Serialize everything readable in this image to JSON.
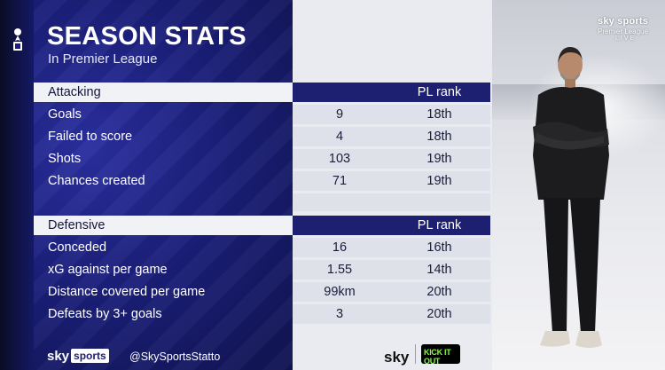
{
  "title": "SEASON STATS",
  "subtitle": "In Premier League",
  "broadcaster": {
    "top_logo_line1": "sky sports",
    "top_logo_line2": "Premier League",
    "top_logo_line3": "LIVE",
    "footer_logo": "sky",
    "footer_badge": "sports",
    "handle": "@SkySportsStatto",
    "partner_logo": "sky",
    "partner_text": "KICK IT OUT"
  },
  "attacking": {
    "header": "Attacking",
    "rank_header": "PL rank",
    "rows": [
      {
        "label": "Goals",
        "value": "9",
        "rank": "18th"
      },
      {
        "label": "Failed to score",
        "value": "4",
        "rank": "18th"
      },
      {
        "label": "Shots",
        "value": "103",
        "rank": "19th"
      },
      {
        "label": "Chances created",
        "value": "71",
        "rank": "19th"
      }
    ]
  },
  "defensive": {
    "header": "Defensive",
    "rank_header": "PL rank",
    "rows": [
      {
        "label": "Conceded",
        "value": "16",
        "rank": "16th"
      },
      {
        "label": "xG against per game",
        "value": "1.55",
        "rank": "14th"
      },
      {
        "label": "Distance covered per game",
        "value": "99km",
        "rank": "20th"
      },
      {
        "label": "Defeats by 3+ goals",
        "value": "3",
        "rank": "20th"
      }
    ]
  },
  "colors": {
    "navy": "#1d2070",
    "panel": "#dfe1ea",
    "accent_green": "#7fff3a"
  }
}
